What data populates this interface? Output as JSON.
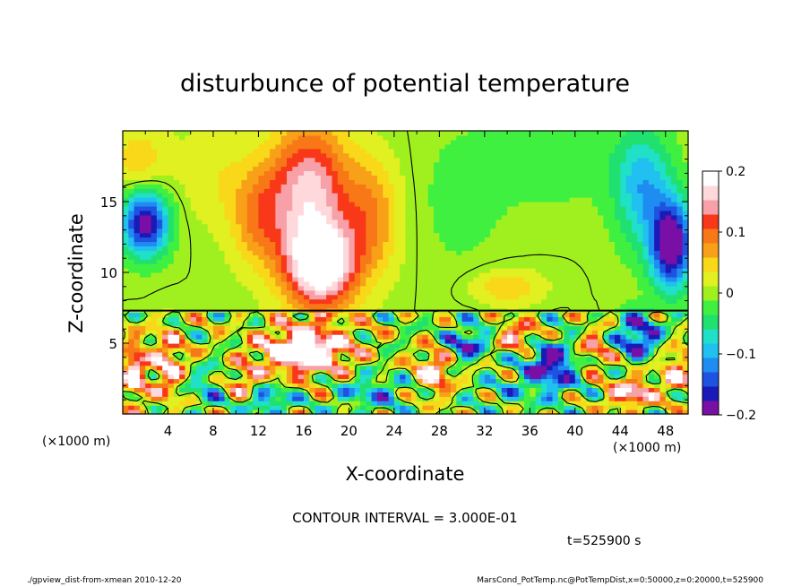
{
  "chart_data": {
    "type": "heatmap",
    "title": "disturbunce of potential temperature",
    "xlabel": "X-coordinate",
    "ylabel": "Z-coordinate",
    "x_unit": "(×1000 m)",
    "z_unit": "(×1000 m)",
    "xlim": [
      0,
      50
    ],
    "zlim": [
      0,
      20
    ],
    "x_ticks": [
      4,
      8,
      12,
      16,
      20,
      24,
      28,
      32,
      36,
      40,
      44,
      48
    ],
    "z_ticks": [
      5,
      10,
      15
    ],
    "colorbar": {
      "range": [
        -0.2,
        0.2
      ],
      "ticks": [
        {
          "value": 0.2,
          "label": "0.2"
        },
        {
          "value": 0.1,
          "label": "0.1"
        },
        {
          "value": 0,
          "label": "0"
        },
        {
          "value": -0.1,
          "label": "−0.1"
        },
        {
          "value": -0.2,
          "label": "−0.2"
        }
      ],
      "colors": [
        "#7a0fa6",
        "#1a1ab8",
        "#1e52e0",
        "#1e8cf0",
        "#20c0f0",
        "#20e0c8",
        "#20e070",
        "#40f040",
        "#a0f020",
        "#e0f020",
        "#f8d818",
        "#f8a018",
        "#f87818",
        "#f83818",
        "#f8a0a8",
        "#ffd8dc",
        "#ffffff"
      ]
    },
    "contour_interval_label": "CONTOUR INTERVAL = 3.000E-01",
    "time_label": "t=525900 s",
    "footer_left": "./gpview_dist-from-xmean  2010-12-20",
    "footer_right": "MarsCond_PotTemp.nc@PotTempDist,x=0:50000,z=0:20000,t=525900",
    "features": [
      {
        "x": 2.0,
        "z": 13.5,
        "sx": 2.0,
        "sz": 2.2,
        "value": -0.2
      },
      {
        "x": 1.5,
        "z": 18.0,
        "sx": 2.5,
        "sz": 2.5,
        "value": 0.05
      },
      {
        "x": 17.5,
        "z": 10.5,
        "sx": 3.2,
        "sz": 3.0,
        "value": 0.22
      },
      {
        "x": 16.5,
        "z": 16.0,
        "sx": 3.5,
        "sz": 4.5,
        "value": 0.16
      },
      {
        "x": 12.0,
        "z": 14.0,
        "sx": 2.5,
        "sz": 3.5,
        "value": 0.08
      },
      {
        "x": 22.0,
        "z": 14.0,
        "sx": 2.5,
        "sz": 4.0,
        "value": 0.08
      },
      {
        "x": 30.0,
        "z": 15.0,
        "sx": 4.0,
        "sz": 5.0,
        "value": -0.02
      },
      {
        "x": 38.0,
        "z": 18.0,
        "sx": 6.0,
        "sz": 3.0,
        "value": -0.03
      },
      {
        "x": 48.5,
        "z": 12.0,
        "sx": 1.8,
        "sz": 3.0,
        "value": -0.22
      },
      {
        "x": 46.0,
        "z": 16.0,
        "sx": 2.5,
        "sz": 4.0,
        "value": -0.1
      },
      {
        "x": 34.0,
        "z": 9.0,
        "sx": 3.0,
        "sz": 1.2,
        "value": 0.06
      },
      {
        "x": 8.0,
        "z": 17.0,
        "sx": 3.0,
        "sz": 3.5,
        "value": 0.03
      },
      {
        "x": 16.0,
        "z": 4.5,
        "sx": 4.0,
        "sz": 1.6,
        "value": 0.25
      },
      {
        "x": 7.5,
        "z": 1.8,
        "sx": 2.0,
        "sz": 1.5,
        "value": -0.08
      },
      {
        "x": 10.5,
        "z": 2.2,
        "sx": 1.5,
        "sz": 1.2,
        "value": 0.12
      },
      {
        "x": 13.0,
        "z": 1.0,
        "sx": 2.0,
        "sz": 1.0,
        "value": -0.12
      },
      {
        "x": 4.0,
        "z": 3.5,
        "sx": 1.5,
        "sz": 2.5,
        "value": 0.15
      },
      {
        "x": 22.0,
        "z": 1.5,
        "sx": 3.0,
        "sz": 1.2,
        "value": -0.1
      },
      {
        "x": 27.5,
        "z": 3.0,
        "sx": 1.5,
        "sz": 1.5,
        "value": 0.18
      },
      {
        "x": 30.5,
        "z": 5.0,
        "sx": 2.0,
        "sz": 1.2,
        "value": -0.15
      },
      {
        "x": 35.0,
        "z": 5.5,
        "sx": 2.0,
        "sz": 1.0,
        "value": 0.15
      },
      {
        "x": 38.0,
        "z": 3.5,
        "sx": 2.5,
        "sz": 1.8,
        "value": -0.2
      },
      {
        "x": 41.5,
        "z": 4.5,
        "sx": 1.8,
        "sz": 1.5,
        "value": 0.12
      },
      {
        "x": 45.5,
        "z": 5.5,
        "sx": 2.0,
        "sz": 1.5,
        "value": -0.18
      },
      {
        "x": 45.0,
        "z": 1.5,
        "sx": 2.0,
        "sz": 1.0,
        "value": 0.18
      },
      {
        "x": 34.0,
        "z": 1.5,
        "sx": 3.0,
        "sz": 1.2,
        "value": -0.05
      },
      {
        "x": 1.0,
        "z": 3.0,
        "sx": 1.0,
        "sz": 2.0,
        "value": 0.2
      },
      {
        "x": 49.0,
        "z": 3.0,
        "sx": 1.2,
        "sz": 1.5,
        "value": 0.15
      }
    ]
  }
}
